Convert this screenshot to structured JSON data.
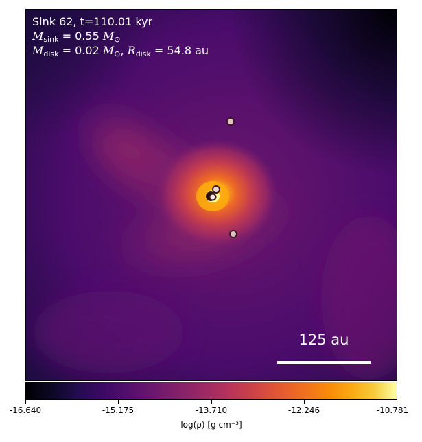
{
  "figure": {
    "title": "Sink 62, t=110.01 kyr",
    "sink_mass": {
      "symbol": "M",
      "sub": "sink",
      "value": "= 0.55",
      "unit": "M",
      "unit_sub": "⊙"
    },
    "disk": {
      "mass_symbol": "M",
      "mass_sub": "disk",
      "mass_value": "= 0.02",
      "mass_unit": "M",
      "mass_unit_sub": "⊙",
      "sep": ",",
      "radius_symbol": "R",
      "radius_sub": "disk",
      "radius_value": "= 54.8 au"
    },
    "scale_bar_label": "125 au"
  },
  "colorbar": {
    "colormap": "inferno",
    "min": -16.64,
    "max": -10.781,
    "tick_labels": [
      "-16.640",
      "-15.175",
      "-13.710",
      "-12.246",
      "-10.781"
    ],
    "label": "log(ρ) [g cm⁻³]"
  },
  "colors": {
    "sink_marker_fill": "#e8c8c8",
    "sink_marker_edge": "#3a1a1a",
    "text": "#ffffff"
  }
}
